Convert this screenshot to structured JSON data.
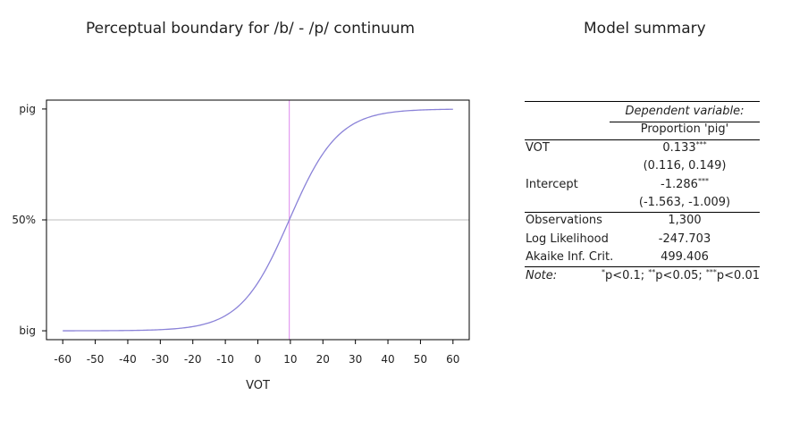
{
  "chart_data": {
    "type": "line",
    "title": "Perceptual boundary for /b/ - /p/ continuum",
    "xlabel": "VOT",
    "ylabel": "",
    "xlim": [
      -65,
      65
    ],
    "ylim": [
      -0.04,
      1.04
    ],
    "x_ticks": [
      -60,
      -50,
      -40,
      -30,
      -20,
      -10,
      0,
      10,
      20,
      30,
      40,
      50,
      60
    ],
    "y_ticks": [
      {
        "value": 0,
        "label": "big"
      },
      {
        "value": 0.5,
        "label": "50%"
      },
      {
        "value": 1,
        "label": "pig"
      }
    ],
    "series": [
      {
        "model": "logistic",
        "intercept": -1.286,
        "slope": 0.133,
        "x_range": [
          -60,
          60
        ],
        "color": "#8a82d8"
      }
    ],
    "reference_lines": {
      "vertical_x": 9.67,
      "vertical_color": "#dd88ee",
      "horizontal_y": 0.5,
      "horizontal_color": "#bdbdbd"
    },
    "grid": false
  },
  "table": {
    "title": "Model summary",
    "dep_var_header": "Dependent variable:",
    "dep_var": "Proportion 'pig'",
    "rows": [
      {
        "label": "VOT",
        "value": "0.133",
        "stars": "***"
      },
      {
        "label": "",
        "value": "(0.116, 0.149)",
        "stars": ""
      },
      {
        "label": "Intercept",
        "value": "-1.286",
        "stars": "***"
      },
      {
        "label": "",
        "value": "(-1.563, -1.009)",
        "stars": ""
      }
    ],
    "stats": [
      {
        "label": "Observations",
        "value": "1,300"
      },
      {
        "label": "Log Likelihood",
        "value": "-247.703"
      },
      {
        "label": "Akaike Inf. Crit.",
        "value": "499.406"
      }
    ],
    "note_label": "Note:",
    "note_star1": "*",
    "note_text1": "p<0.1; ",
    "note_star2": "**",
    "note_text2": "p<0.05; ",
    "note_star3": "***",
    "note_text3": "p<0.01"
  }
}
